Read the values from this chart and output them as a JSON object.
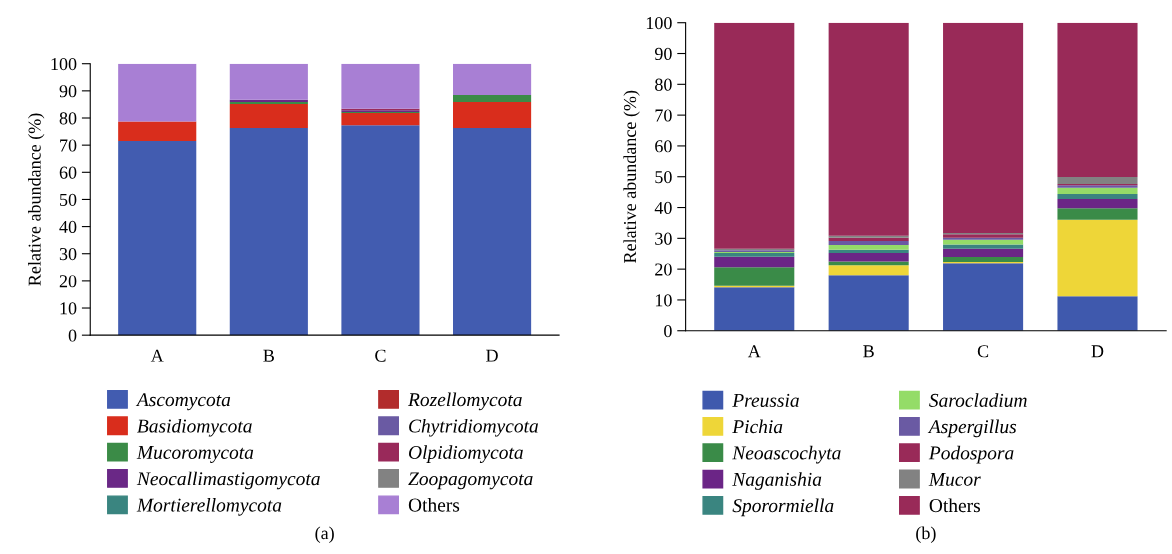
{
  "chart_data": [
    {
      "type": "bar",
      "stacked": true,
      "ylabel": "Relative abundance (%)",
      "categories": [
        "A",
        "B",
        "C",
        "D"
      ],
      "ylim": [
        0,
        100
      ],
      "yticks": [
        0,
        10,
        20,
        30,
        40,
        50,
        60,
        70,
        80,
        90,
        100
      ],
      "grid": false,
      "legend": "bottom",
      "annotations": [
        "(a)"
      ],
      "series": [
        {
          "name": "Ascomycota",
          "color": "#425cb0",
          "values": [
            71.5,
            76.3,
            77.3,
            76.3
          ]
        },
        {
          "name": "Basidiomycota",
          "color": "#d92d1c",
          "values": [
            7.2,
            8.9,
            4.5,
            9.6
          ]
        },
        {
          "name": "Mucoromycota",
          "color": "#3b8b47",
          "values": [
            0,
            0.7,
            0.4,
            2.6
          ]
        },
        {
          "name": "Neocallimastigomycota",
          "color": "#6a2886",
          "values": [
            0,
            0.8,
            0.7,
            0
          ]
        },
        {
          "name": "Mortierellomycota",
          "color": "#3a8580",
          "values": [
            0,
            0,
            0,
            0
          ]
        },
        {
          "name": "Rozellomycota",
          "color": "#b22c2c",
          "values": [
            0,
            0,
            0,
            0
          ]
        },
        {
          "name": "Chytridiomycota",
          "color": "#6a5aa3",
          "values": [
            0,
            0,
            0,
            0
          ]
        },
        {
          "name": "Olpidiomycota",
          "color": "#99295a",
          "values": [
            0,
            0,
            0.5,
            0
          ]
        },
        {
          "name": "Zoopagomycota",
          "color": "#828282",
          "values": [
            0,
            0,
            0,
            0
          ]
        },
        {
          "name": "Others",
          "color": "#a87fd4",
          "values": [
            21.3,
            13.3,
            16.6,
            11.5
          ]
        }
      ]
    },
    {
      "type": "bar",
      "stacked": true,
      "ylabel": "Relative abundance (%)",
      "categories": [
        "A",
        "B",
        "C",
        "D"
      ],
      "ylim": [
        0,
        100
      ],
      "yticks": [
        0,
        10,
        20,
        30,
        40,
        50,
        60,
        70,
        80,
        90,
        100
      ],
      "grid": false,
      "legend": "bottom",
      "annotations": [
        "(b)"
      ],
      "series": [
        {
          "name": "Preussia",
          "color": "#3f59ad",
          "values": [
            14.1,
            18.0,
            21.9,
            11.2
          ]
        },
        {
          "name": "Pichia",
          "color": "#eed638",
          "values": [
            0.5,
            3.3,
            0.4,
            24.8
          ]
        },
        {
          "name": "Neoascochyta",
          "color": "#3a8b48",
          "values": [
            6.0,
            1.2,
            1.6,
            3.8
          ]
        },
        {
          "name": "Naganishia",
          "color": "#6b2586",
          "values": [
            3.4,
            2.7,
            2.7,
            3.0
          ]
        },
        {
          "name": "Sporormiella",
          "color": "#3a8580",
          "values": [
            1.2,
            1.1,
            1.4,
            1.6
          ]
        },
        {
          "name": "Sarocladium",
          "color": "#94dc68",
          "values": [
            0.4,
            1.5,
            1.5,
            2.0
          ]
        },
        {
          "name": "Aspergillus",
          "color": "#6a5aa3",
          "values": [
            0.5,
            1.3,
            0.7,
            0.8
          ]
        },
        {
          "name": "Podospora",
          "color": "#992a58",
          "values": [
            0,
            1.1,
            1.1,
            0.4
          ]
        },
        {
          "name": "Mucor",
          "color": "#828282",
          "values": [
            0.5,
            0.6,
            0.4,
            2.3
          ]
        },
        {
          "name": "Others",
          "color": "#992a58",
          "values": [
            73.4,
            69.2,
            68.3,
            50.1
          ]
        }
      ]
    }
  ]
}
